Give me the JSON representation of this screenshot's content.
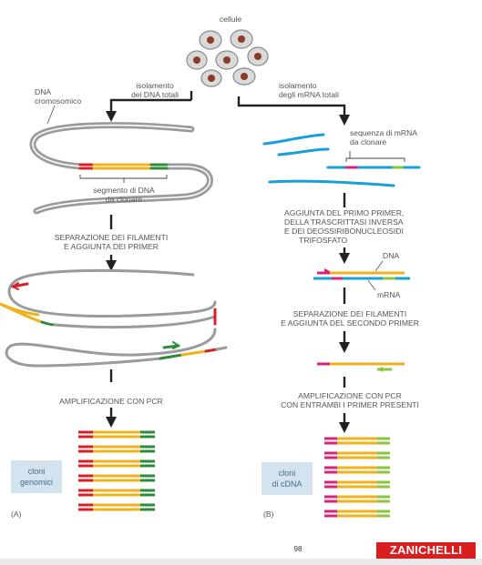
{
  "top": {
    "cells_label": "cellule",
    "dna_isolation": [
      "isolamento",
      "dei DNA totali"
    ],
    "mrna_isolation": [
      "isolamento",
      "degli mRNA totali"
    ]
  },
  "panel_a": {
    "letter": "(A)",
    "chromosomal_dna": [
      "DNA",
      "cromosomico"
    ],
    "segment_label": [
      "segmento di DNA",
      "da clonare"
    ],
    "step1": [
      "SEPARAZIONE DEI FILAMENTI",
      "E AGGIUNTA DEI PRIMER"
    ],
    "step2": "AMPLIFICAZIONE CON PCR",
    "clones": [
      "cloni",
      "genomici"
    ]
  },
  "panel_b": {
    "letter": "(B)",
    "mrna_sequence": [
      "sequenza di mRNA",
      "da clonare"
    ],
    "step1": [
      "AGGIUNTA DEL PRIMO PRIMER,",
      "DELLA TRASCRITTASI INVERSA",
      "E DEI DEOSSIRIBONUCLEOSIDI",
      "TRIFOSFATO"
    ],
    "dna_label": "DNA",
    "mrna_label": "mRNA",
    "step2": [
      "SEPARAZIONE DEI FILAMENTI",
      "E AGGIUNTA DEL SECONDO PRIMER"
    ],
    "step3": [
      "AMPLIFICAZIONE CON PCR",
      "CON ENTRAMBI I PRIMER PRESENTI"
    ],
    "clones": [
      "cloni",
      "di cDNA"
    ]
  },
  "footer": {
    "page_number": "98",
    "brand": "ZANICHELLI"
  },
  "colors": {
    "dna_gray": "#9b9b9b",
    "mrna_blue": "#1a9fd6",
    "primer_red": "#d61f26",
    "primer_green": "#2e8b3c",
    "segment_yellow": "#f0b21c",
    "magenta": "#d6257a",
    "light_green": "#8cc63f",
    "badge_bg": "#d3e3ef",
    "brand_red": "#d81e1e"
  }
}
